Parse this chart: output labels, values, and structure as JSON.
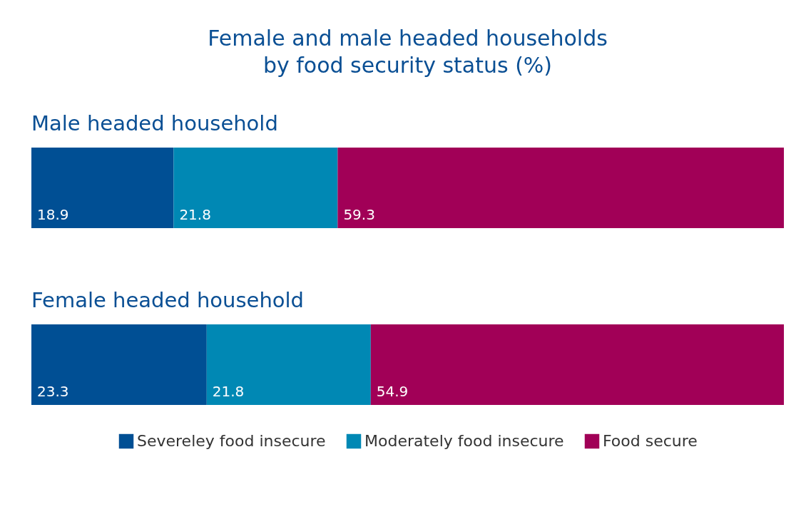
{
  "chart_data": {
    "type": "bar",
    "title": "Female and male headed households by food security status (%)",
    "orientation": "horizontal",
    "stacked": true,
    "data_labels": true,
    "legend": "bottom",
    "categories": [
      "Male headed household",
      "Female headed household"
    ],
    "series": [
      {
        "name": "Severeley food insecure",
        "color": "#004f94",
        "values": [
          18.9,
          23.3
        ]
      },
      {
        "name": "Moderately food insecure",
        "color": "#0088b4",
        "values": [
          21.8,
          21.8
        ]
      },
      {
        "name": "Food secure",
        "color": "#a10057",
        "values": [
          59.3,
          54.9
        ]
      }
    ]
  }
}
